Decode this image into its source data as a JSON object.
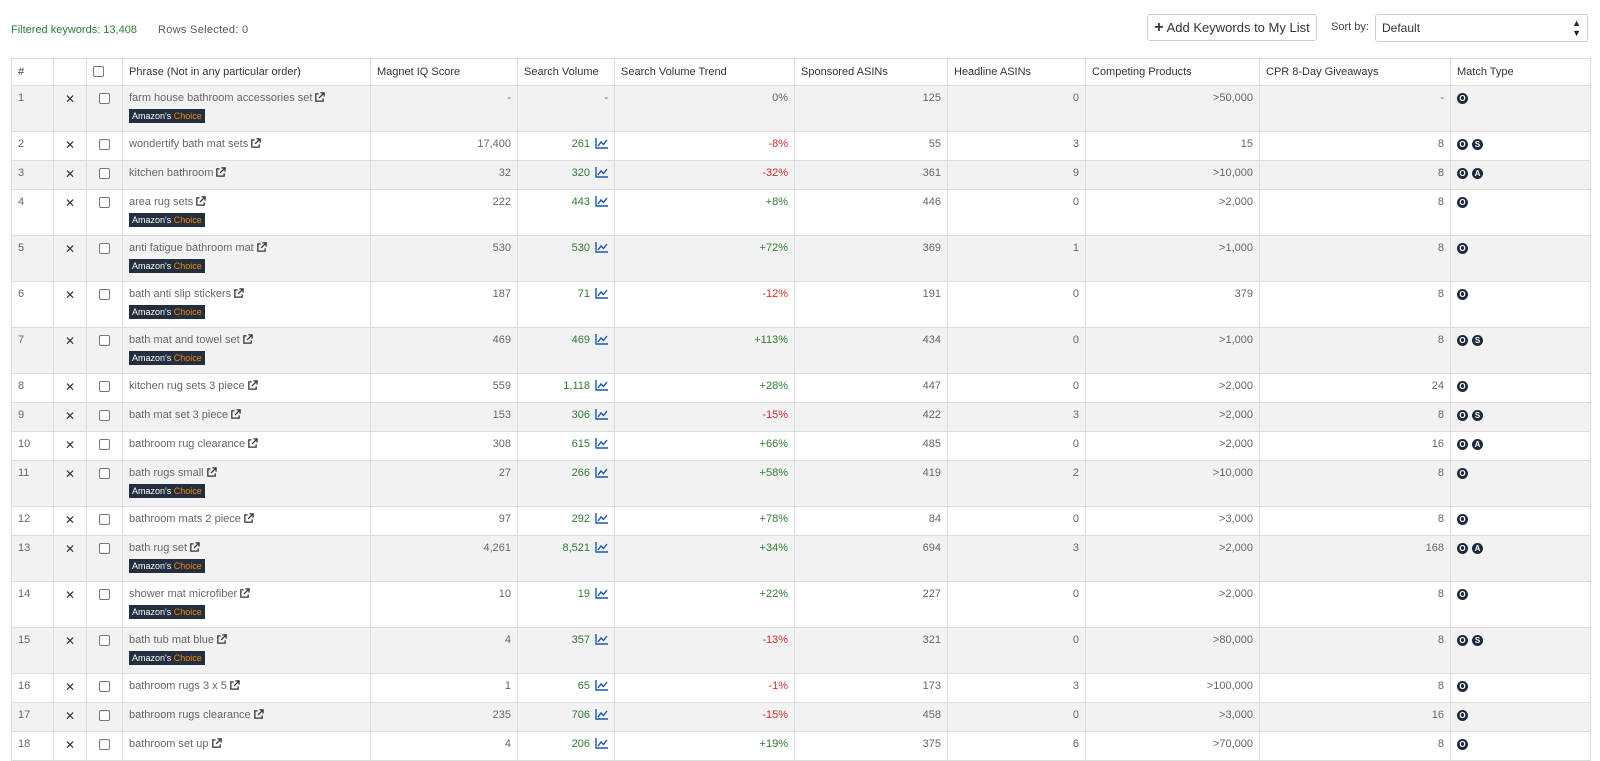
{
  "header": {
    "filtered_label": "Filtered keywords: 13,408",
    "rows_selected_label": "Rows Selected: 0",
    "add_button_label": "Add Keywords to My List",
    "sort_label": "Sort by:",
    "sort_value": "Default"
  },
  "table": {
    "columns": [
      "#",
      "",
      "",
      "Phrase (Not in any particular order)",
      "Magnet IQ Score",
      "Search Volume",
      "Search Volume Trend",
      "Sponsored ASINs",
      "Headline ASINs",
      "Competing Products",
      "CPR 8-Day Giveaways",
      "Match Type"
    ],
    "badge_label": {
      "prefix": "Amazon's",
      "suffix": "Choice"
    },
    "rows": [
      {
        "n": "1",
        "phrase": "farm house bathroom accessories set",
        "choice": true,
        "iq": "-",
        "sv": "-",
        "svtrend_icon": false,
        "trend": "0%",
        "trend_dir": "neu",
        "sponsored": "125",
        "headline": "0",
        "competing": ">50,000",
        "cpr": "-",
        "match": [
          "O"
        ]
      },
      {
        "n": "2",
        "phrase": "wondertify bath mat sets",
        "choice": false,
        "iq": "17,400",
        "sv": "261",
        "svtrend_icon": true,
        "trend": "-8%",
        "trend_dir": "neg",
        "sponsored": "55",
        "headline": "3",
        "competing": "15",
        "cpr": "8",
        "match": [
          "O",
          "S"
        ]
      },
      {
        "n": "3",
        "phrase": "kitchen bathroom",
        "choice": false,
        "iq": "32",
        "sv": "320",
        "svtrend_icon": true,
        "trend": "-32%",
        "trend_dir": "neg",
        "sponsored": "361",
        "headline": "9",
        "competing": ">10,000",
        "cpr": "8",
        "match": [
          "O",
          "A"
        ]
      },
      {
        "n": "4",
        "phrase": "area rug sets",
        "choice": true,
        "iq": "222",
        "sv": "443",
        "svtrend_icon": true,
        "trend": "+8%",
        "trend_dir": "pos",
        "sponsored": "446",
        "headline": "0",
        "competing": ">2,000",
        "cpr": "8",
        "match": [
          "O"
        ]
      },
      {
        "n": "5",
        "phrase": "anti fatigue bathroom mat",
        "choice": true,
        "iq": "530",
        "sv": "530",
        "svtrend_icon": true,
        "trend": "+72%",
        "trend_dir": "pos",
        "sponsored": "369",
        "headline": "1",
        "competing": ">1,000",
        "cpr": "8",
        "match": [
          "O"
        ]
      },
      {
        "n": "6",
        "phrase": "bath anti slip stickers",
        "choice": true,
        "iq": "187",
        "sv": "71",
        "svtrend_icon": true,
        "trend": "-12%",
        "trend_dir": "neg",
        "sponsored": "191",
        "headline": "0",
        "competing": "379",
        "cpr": "8",
        "match": [
          "O"
        ]
      },
      {
        "n": "7",
        "phrase": "bath mat and towel set",
        "choice": true,
        "iq": "469",
        "sv": "469",
        "svtrend_icon": true,
        "trend": "+113%",
        "trend_dir": "pos",
        "sponsored": "434",
        "headline": "0",
        "competing": ">1,000",
        "cpr": "8",
        "match": [
          "O",
          "S"
        ]
      },
      {
        "n": "8",
        "phrase": "kitchen rug sets 3 piece",
        "choice": false,
        "iq": "559",
        "sv": "1,118",
        "svtrend_icon": true,
        "trend": "+28%",
        "trend_dir": "pos",
        "sponsored": "447",
        "headline": "0",
        "competing": ">2,000",
        "cpr": "24",
        "match": [
          "O"
        ]
      },
      {
        "n": "9",
        "phrase": "bath mat set 3 piece",
        "choice": false,
        "iq": "153",
        "sv": "306",
        "svtrend_icon": true,
        "trend": "-15%",
        "trend_dir": "neg",
        "sponsored": "422",
        "headline": "3",
        "competing": ">2,000",
        "cpr": "8",
        "match": [
          "O",
          "S"
        ]
      },
      {
        "n": "10",
        "phrase": "bathroom rug clearance",
        "choice": false,
        "iq": "308",
        "sv": "615",
        "svtrend_icon": true,
        "trend": "+66%",
        "trend_dir": "pos",
        "sponsored": "485",
        "headline": "0",
        "competing": ">2,000",
        "cpr": "16",
        "match": [
          "O",
          "A"
        ]
      },
      {
        "n": "11",
        "phrase": "bath rugs small",
        "choice": true,
        "iq": "27",
        "sv": "266",
        "svtrend_icon": true,
        "trend": "+58%",
        "trend_dir": "pos",
        "sponsored": "419",
        "headline": "2",
        "competing": ">10,000",
        "cpr": "8",
        "match": [
          "O"
        ]
      },
      {
        "n": "12",
        "phrase": "bathroom mats 2 piece",
        "choice": false,
        "iq": "97",
        "sv": "292",
        "svtrend_icon": true,
        "trend": "+78%",
        "trend_dir": "pos",
        "sponsored": "84",
        "headline": "0",
        "competing": ">3,000",
        "cpr": "8",
        "match": [
          "O"
        ]
      },
      {
        "n": "13",
        "phrase": "bath rug set",
        "choice": true,
        "iq": "4,261",
        "sv": "8,521",
        "svtrend_icon": true,
        "trend": "+34%",
        "trend_dir": "pos",
        "sponsored": "694",
        "headline": "3",
        "competing": ">2,000",
        "cpr": "168",
        "match": [
          "O",
          "A"
        ]
      },
      {
        "n": "14",
        "phrase": "shower mat microfiber",
        "choice": true,
        "iq": "10",
        "sv": "19",
        "svtrend_icon": true,
        "trend": "+22%",
        "trend_dir": "pos",
        "sponsored": "227",
        "headline": "0",
        "competing": ">2,000",
        "cpr": "8",
        "match": [
          "O"
        ]
      },
      {
        "n": "15",
        "phrase": "bath tub mat blue",
        "choice": true,
        "iq": "4",
        "sv": "357",
        "svtrend_icon": true,
        "trend": "-13%",
        "trend_dir": "neg",
        "sponsored": "321",
        "headline": "0",
        "competing": ">80,000",
        "cpr": "8",
        "match": [
          "O",
          "S"
        ]
      },
      {
        "n": "16",
        "phrase": "bathroom rugs 3 x 5",
        "choice": false,
        "iq": "1",
        "sv": "65",
        "svtrend_icon": true,
        "trend": "-1%",
        "trend_dir": "neg",
        "sponsored": "173",
        "headline": "3",
        "competing": ">100,000",
        "cpr": "8",
        "match": [
          "O"
        ]
      },
      {
        "n": "17",
        "phrase": "bathroom rugs clearance",
        "choice": false,
        "iq": "235",
        "sv": "706",
        "svtrend_icon": true,
        "trend": "-15%",
        "trend_dir": "neg",
        "sponsored": "458",
        "headline": "0",
        "competing": ">3,000",
        "cpr": "16",
        "match": [
          "O"
        ]
      },
      {
        "n": "18",
        "phrase": "bathroom set up",
        "choice": false,
        "iq": "4",
        "sv": "206",
        "svtrend_icon": true,
        "trend": "+19%",
        "trend_dir": "pos",
        "sponsored": "375",
        "headline": "6",
        "competing": ">70,000",
        "cpr": "8",
        "match": [
          "O"
        ]
      }
    ]
  }
}
